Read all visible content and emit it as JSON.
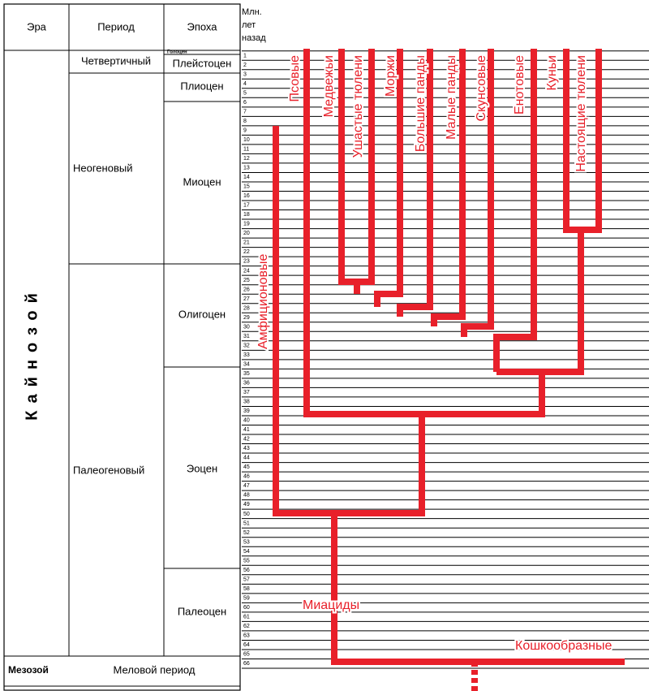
{
  "table": {
    "headers": [
      "Эра",
      "Период",
      "Эпоха"
    ],
    "scale_header": [
      "Млн.",
      "лет",
      "назад"
    ],
    "eras": [
      "Кайнозой",
      "Мезозой"
    ],
    "periods": [
      "Четвертичный",
      "Неогеновый",
      "Палеогеновый",
      "Меловой период"
    ],
    "epochs": [
      "Голоцен",
      "Плейстоцен",
      "Плиоцен",
      "Миоцен",
      "Олигоцен",
      "Эоцен",
      "Палеоцен"
    ],
    "scale": [
      1,
      2,
      3,
      4,
      5,
      6,
      7,
      8,
      9,
      10,
      11,
      12,
      13,
      14,
      15,
      16,
      17,
      18,
      19,
      20,
      21,
      22,
      23,
      24,
      25,
      26,
      27,
      28,
      29,
      30,
      31,
      32,
      33,
      34,
      35,
      36,
      37,
      38,
      39,
      40,
      41,
      42,
      43,
      44,
      45,
      46,
      47,
      48,
      49,
      50,
      51,
      52,
      53,
      54,
      55,
      56,
      57,
      58,
      59,
      60,
      61,
      62,
      63,
      64,
      65,
      66
    ]
  },
  "tree": {
    "taxa": [
      "Псовые",
      "Медвежьи",
      "Ушастые тюлени",
      "Моржи",
      "Большие панды",
      "Малые панды",
      "Скунсовые",
      "Енотовые",
      "Куньи",
      "Настоящие тюлени",
      "Амфиционовые",
      "Миациды",
      "Кошкообразные"
    ]
  }
}
